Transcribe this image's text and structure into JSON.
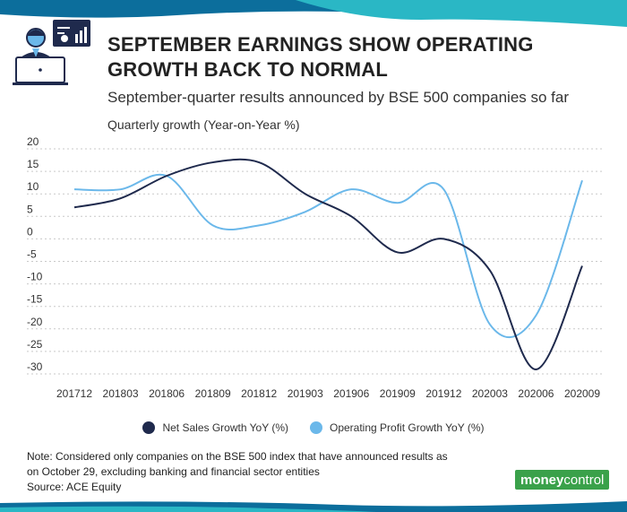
{
  "header": {
    "title": "SEPTEMBER EARNINGS SHOW OPERATING GROWTH BACK TO NORMAL",
    "subtitle": "September-quarter results announced by BSE 500 companies so far",
    "ylabel": "Quarterly growth (Year-on-Year %)",
    "icon": "analyst-at-laptop-icon"
  },
  "colors": {
    "net_sales": "#1f2a4d",
    "operating_profit": "#6bb8ea",
    "band_dark": "#0c6e9c",
    "band_light": "#2ab7c5",
    "brand_green": "#3aa14a"
  },
  "chart_data": {
    "type": "line",
    "categories": [
      "201712",
      "201803",
      "201806",
      "201809",
      "201812",
      "201903",
      "201906",
      "201909",
      "201912",
      "202003",
      "202006",
      "202009"
    ],
    "series": [
      {
        "name": "Net Sales Growth YoY (%)",
        "color": "#1f2a4d",
        "values": [
          7,
          9,
          14,
          17,
          17,
          10,
          5,
          -3,
          0,
          -7,
          -29,
          -6
        ]
      },
      {
        "name": "Operating Profit Growth YoY (%)",
        "color": "#6bb8ea",
        "values": [
          11,
          11,
          14,
          3,
          3,
          6,
          11,
          8,
          11,
          -19,
          -17,
          13
        ]
      }
    ],
    "yticks": [
      20,
      15,
      10,
      5,
      0,
      -5,
      -10,
      -15,
      -20,
      -25,
      -30
    ],
    "ylim": [
      -30,
      20
    ],
    "grid": "horizontal-dotted",
    "legend_position": "bottom"
  },
  "footer": {
    "note_line1": "Note: Considered only companies on the BSE 500 index that have announced results as",
    "note_line2": "on October 29, excluding banking and financial sector entities",
    "source": "Source: ACE Equity",
    "brand_part1": "money",
    "brand_part2": "control"
  }
}
